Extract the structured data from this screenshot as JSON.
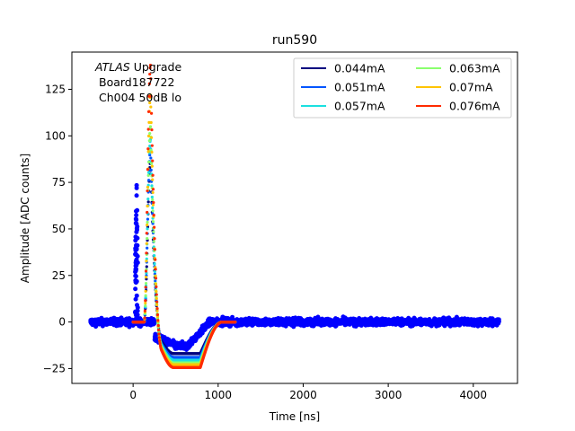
{
  "chart_data": {
    "type": "scatter",
    "title": "run590",
    "xlabel": "Time [ns]",
    "ylabel": "Amplitude [ADC counts]",
    "xlim": [
      -720,
      4520
    ],
    "ylim": [
      -33,
      145
    ],
    "xticks": [
      0,
      1000,
      2000,
      3000,
      4000
    ],
    "yticks": [
      -25,
      0,
      25,
      50,
      75,
      100,
      125
    ],
    "grid": false,
    "legend_position": "top-right",
    "annotation": {
      "line1_italic": "ATLAS",
      "line1_rest": " Upgrade",
      "line2": "Board187722",
      "line3": "Ch004 50dB lo"
    },
    "scatter_points": {
      "color": "#0000ff",
      "x_range": [
        -500,
        4300
      ],
      "baseline": 0,
      "noise_band": [
        -6,
        6
      ],
      "prepulse_peak_x": 40,
      "prepulse_peak_y": 82,
      "undershoot_y": -13
    },
    "series": [
      {
        "name": "0.044mA",
        "color": "#00007f",
        "peak": 86,
        "undershoot": -17
      },
      {
        "name": "0.051mA",
        "color": "#0055ff",
        "peak": 93,
        "undershoot": -19
      },
      {
        "name": "0.057mA",
        "color": "#1be0e0",
        "peak": 98,
        "undershoot": -20.5
      },
      {
        "name": "0.063mA",
        "color": "#8aff6e",
        "peak": 105,
        "undershoot": -22
      },
      {
        "name": "0.07mA",
        "color": "#ffc400",
        "peak": 122,
        "undershoot": -23
      },
      {
        "name": "0.076mA",
        "color": "#ff2a00",
        "peak": 138,
        "undershoot": -24.5
      }
    ],
    "pulse_shape": {
      "start_x": 0,
      "end_x": 1200,
      "rise_start": 130,
      "peak_x": 205,
      "undershoot_x": [
        480,
        790
      ],
      "recovery_end": 1050
    }
  }
}
